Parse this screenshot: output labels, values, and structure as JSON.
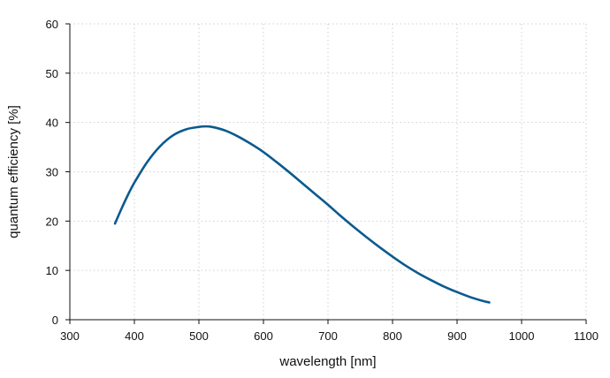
{
  "chart_data": {
    "type": "line",
    "title": "",
    "xlabel": "wavelength [nm]",
    "ylabel": "quantum efficiency [%]",
    "xlim": [
      300,
      1100
    ],
    "ylim": [
      0,
      60
    ],
    "x_ticks": [
      300,
      400,
      500,
      600,
      700,
      800,
      900,
      1000,
      1100
    ],
    "y_ticks": [
      0,
      10,
      20,
      30,
      40,
      50,
      60
    ],
    "grid": true,
    "series": [
      {
        "color": "#0b5a8e",
        "x": [
          370,
          380,
          390,
          400,
          420,
          440,
          460,
          480,
          500,
          510,
          520,
          540,
          560,
          580,
          600,
          620,
          640,
          660,
          680,
          700,
          720,
          740,
          760,
          780,
          800,
          820,
          840,
          860,
          880,
          900,
          920,
          940,
          950
        ],
        "y": [
          19.5,
          22.5,
          25.3,
          27.8,
          32.0,
          35.2,
          37.4,
          38.6,
          39.1,
          39.2,
          39.1,
          38.4,
          37.2,
          35.7,
          34.0,
          32.0,
          29.9,
          27.7,
          25.5,
          23.3,
          21.0,
          18.8,
          16.7,
          14.7,
          12.8,
          11.0,
          9.4,
          8.0,
          6.7,
          5.6,
          4.6,
          3.8,
          3.5
        ]
      }
    ]
  }
}
